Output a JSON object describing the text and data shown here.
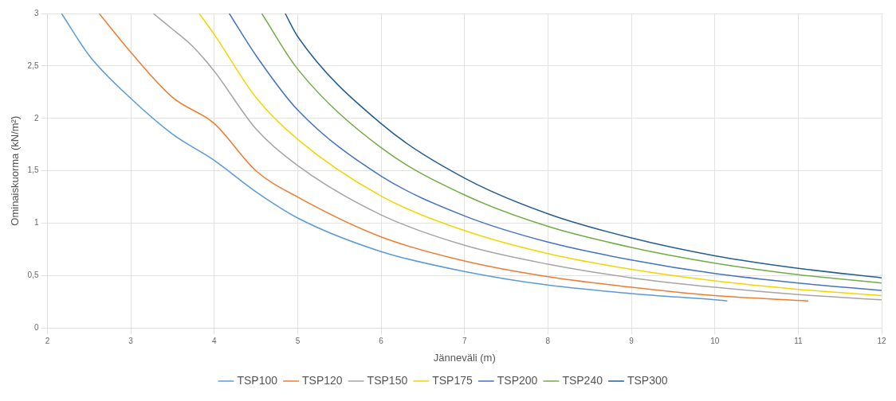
{
  "chart_data": {
    "type": "line",
    "xlabel": "Jänneväli (m)",
    "ylabel": "Ominaiskuorma (kN/m²)",
    "xlim": [
      2,
      12
    ],
    "xticks": [
      2,
      3,
      4,
      5,
      6,
      7,
      8,
      9,
      10,
      11,
      12
    ],
    "ylim": [
      0,
      3
    ],
    "yticks": [
      0,
      {
        "value": 0.5,
        "label": "0,5"
      },
      1,
      {
        "value": 1.5,
        "label": "1,5"
      },
      2,
      {
        "value": 2.5,
        "label": "2,5"
      },
      3
    ],
    "grid": true,
    "legend": "bottom",
    "marker": "none",
    "line_style": "solid",
    "series": [
      {
        "name": "TSP100",
        "color": "#5b9bd5",
        "x": [
          2.17,
          2.5,
          3,
          3.5,
          4,
          4.5,
          5,
          6,
          7,
          8,
          9,
          10,
          10.15
        ],
        "values": [
          3,
          2.6,
          2.19,
          1.85,
          1.6,
          1.3,
          1.05,
          0.73,
          0.54,
          0.41,
          0.33,
          0.27,
          0.26
        ]
      },
      {
        "name": "TSP120",
        "color": "#ed7d31",
        "x": [
          2.62,
          3,
          3.5,
          4,
          4.5,
          5,
          6,
          7,
          8,
          9,
          10,
          11.12
        ],
        "values": [
          3,
          2.63,
          2.2,
          1.95,
          1.5,
          1.25,
          0.87,
          0.64,
          0.49,
          0.39,
          0.31,
          0.26
        ]
      },
      {
        "name": "TSP150",
        "color": "#a5a5a5",
        "x": [
          3.27,
          3.5,
          3.75,
          4,
          4.5,
          5,
          6,
          7,
          8,
          9,
          10,
          11,
          12
        ],
        "values": [
          3,
          2.85,
          2.68,
          2.45,
          1.9,
          1.55,
          1.08,
          0.79,
          0.61,
          0.48,
          0.39,
          0.32,
          0.27
        ]
      },
      {
        "name": "TSP175",
        "color": "#f2d600",
        "x": [
          3.82,
          4,
          4.5,
          5,
          6,
          7,
          8,
          9,
          10,
          11,
          12
        ],
        "values": [
          3,
          2.8,
          2.2,
          1.8,
          1.26,
          0.93,
          0.71,
          0.56,
          0.45,
          0.37,
          0.31
        ]
      },
      {
        "name": "TSP200",
        "color": "#4472c4",
        "x": [
          4.18,
          4.5,
          5,
          6,
          7,
          8,
          9,
          10,
          11,
          12
        ],
        "values": [
          3,
          2.6,
          2.08,
          1.45,
          1.07,
          0.82,
          0.65,
          0.52,
          0.43,
          0.36
        ]
      },
      {
        "name": "TSP240",
        "color": "#70ad47",
        "x": [
          4.57,
          5,
          6,
          7,
          8,
          9,
          10,
          11,
          12
        ],
        "values": [
          3,
          2.47,
          1.72,
          1.27,
          0.97,
          0.77,
          0.62,
          0.51,
          0.43
        ]
      },
      {
        "name": "TSP300",
        "color": "#255e91",
        "x": [
          4.85,
          5,
          6,
          7,
          8,
          9,
          10,
          11,
          12
        ],
        "values": [
          3,
          2.78,
          1.95,
          1.43,
          1.09,
          0.86,
          0.69,
          0.57,
          0.48
        ]
      }
    ]
  }
}
